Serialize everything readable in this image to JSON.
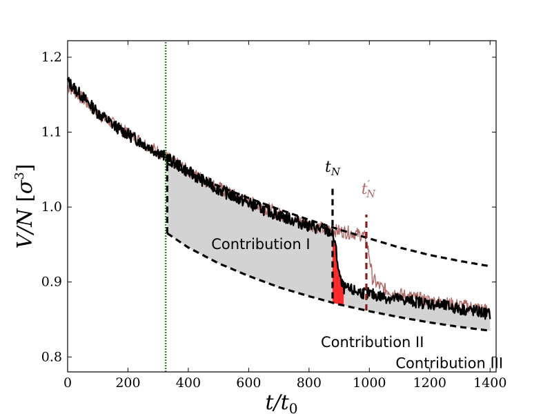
{
  "chart_data": {
    "type": "line",
    "xlabel": "t/t₀",
    "ylabel": "V/N [σ³]",
    "xlim": [
      0,
      1420
    ],
    "ylim": [
      0.78,
      1.222
    ],
    "x_ticks": [
      "0",
      "200",
      "400",
      "600",
      "800",
      "1000",
      "1200",
      "1400"
    ],
    "y_ticks": [
      "0.8",
      "0.9",
      "1.0",
      "1.1",
      "1.2"
    ],
    "grid": false,
    "series": [
      {
        "color": "#000000",
        "x": [
          0,
          50,
          100,
          150,
          200,
          250,
          300,
          330,
          350,
          400,
          450,
          500,
          550,
          600,
          650,
          700,
          750,
          800,
          850,
          875,
          885,
          895,
          905,
          915,
          930,
          950,
          1000,
          1050,
          1100,
          1150,
          1200,
          1250,
          1300,
          1350,
          1400
        ],
        "y": [
          1.168,
          1.147,
          1.126,
          1.11,
          1.097,
          1.085,
          1.073,
          1.065,
          1.06,
          1.047,
          1.035,
          1.024,
          1.014,
          1.005,
          0.997,
          0.989,
          0.982,
          0.975,
          0.969,
          0.966,
          0.955,
          0.925,
          0.9,
          0.892,
          0.89,
          0.888,
          0.884,
          0.88,
          0.877,
          0.874,
          0.871,
          0.868,
          0.864,
          0.861,
          0.857
        ]
      },
      {
        "color": "#b06a66",
        "x": [
          0,
          50,
          100,
          150,
          200,
          250,
          300,
          330,
          350,
          400,
          450,
          500,
          550,
          600,
          650,
          700,
          750,
          800,
          850,
          900,
          950,
          980,
          990,
          1000,
          1010,
          1030,
          1050,
          1100,
          1150,
          1200,
          1250,
          1300,
          1350,
          1400
        ],
        "y": [
          1.162,
          1.144,
          1.125,
          1.111,
          1.098,
          1.086,
          1.074,
          1.066,
          1.061,
          1.048,
          1.037,
          1.026,
          1.016,
          1.007,
          0.999,
          0.991,
          0.984,
          0.977,
          0.971,
          0.968,
          0.965,
          0.962,
          0.955,
          0.935,
          0.905,
          0.895,
          0.89,
          0.884,
          0.879,
          0.875,
          0.872,
          0.869,
          0.866,
          0.862
        ]
      }
    ],
    "dashed_curves": [
      {
        "color": "#000000",
        "x": [
          330,
          400,
          500,
          600,
          700,
          800,
          900,
          1000,
          1100,
          1200,
          1300,
          1400
        ],
        "y": [
          1.058,
          1.045,
          1.028,
          1.012,
          0.997,
          0.983,
          0.97,
          0.958,
          0.946,
          0.936,
          0.928,
          0.921
        ]
      },
      {
        "color": "#000000",
        "x": [
          330,
          400,
          500,
          600,
          700,
          800,
          900,
          1000,
          1100,
          1200,
          1300,
          1400
        ],
        "y": [
          0.965,
          0.946,
          0.925,
          0.908,
          0.893,
          0.881,
          0.87,
          0.861,
          0.853,
          0.846,
          0.84,
          0.835
        ]
      }
    ],
    "vertical_lines": [
      {
        "x": 325,
        "y_range": [
          0.78,
          1.222
        ],
        "color": "#2a8a2a",
        "style": "dotted"
      },
      {
        "x": 330,
        "y_range": [
          0.965,
          1.07
        ],
        "color": "#000000",
        "style": "dashed"
      },
      {
        "x": 878,
        "y_range": [
          0.878,
          1.027
        ],
        "color": "#000000",
        "style": "dashed",
        "label": "t_N"
      },
      {
        "x": 990,
        "y_range": [
          0.862,
          0.99
        ],
        "color": "#8b1a1a",
        "style": "dashed",
        "label": "t'_N"
      }
    ],
    "marker_labels": {
      "tN_base": "t",
      "tN_sub": "N",
      "tNp_base": "t",
      "tNp_prime": "′",
      "tNp_sub": "N"
    },
    "shaded_regions": [
      {
        "name": "Contribution I",
        "color": "#d3d3d3"
      },
      {
        "name": "Contribution II",
        "color": "#ff2a2a"
      },
      {
        "name": "Contribution III",
        "color": "#d3d3d3"
      }
    ],
    "annotations": {
      "contribution_1": "Contribution I",
      "contribution_2": "Contribution II",
      "contribution_3": "Contribution III"
    }
  }
}
